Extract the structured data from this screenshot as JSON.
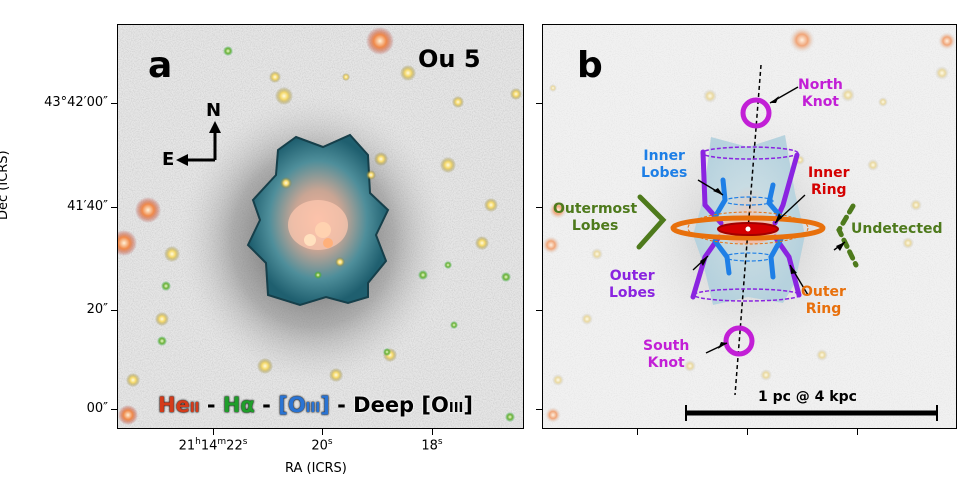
{
  "panel_a": {
    "letter": "a",
    "object_name": "Ou 5",
    "compass": {
      "north": "N",
      "east": "E"
    },
    "legend": {
      "he": "He",
      "he_ion": "II",
      "sep1": " - ",
      "ha": "Hα",
      "sep2": " - ",
      "o3_open": "[O",
      "o3_ion": "III",
      "o3_close": "]",
      "sep3": " - ",
      "deep": "Deep [O",
      "deep_ion": "III",
      "deep_close": "]"
    },
    "y_ticks": [
      "43°42′00″",
      "41′40″",
      "20″",
      "00″"
    ],
    "x_ticks": [
      "21h14m22s",
      "20s",
      "18s"
    ],
    "x_tick_parts": [
      {
        "h": "21",
        "hs": "h",
        "m": "14",
        "ms": "m",
        "s": "22",
        "ss": "s"
      },
      {
        "s": "20",
        "ss": "s"
      },
      {
        "s": "18",
        "ss": "s"
      }
    ],
    "xlabel": "RA (ICRS)",
    "ylabel": "Dec (ICRS)"
  },
  "panel_b": {
    "letter": "b",
    "labels": {
      "north_knot": [
        "North",
        "Knot"
      ],
      "south_knot": [
        "South",
        "Knot"
      ],
      "inner_lobes": [
        "Inner",
        "Lobes"
      ],
      "inner_ring": [
        "Inner",
        "Ring"
      ],
      "outermost_lobes": [
        "Outermost",
        "Lobes"
      ],
      "undetected": "Undetected",
      "outer_lobes": [
        "Outer",
        "Lobes"
      ],
      "outer_ring": [
        "Outer",
        "Ring"
      ]
    },
    "scale_bar": "1 pc @ 4 kpc"
  },
  "colors": {
    "he": "#d43b1a",
    "ha": "#1f9e2a",
    "o3": "#2a74d4",
    "knot": "#c21fd6",
    "inner_lobes": "#1e7fe6",
    "inner_ring": "#d40000",
    "outermost": "#4e7a1c",
    "outer_lobes": "#8a24e0",
    "outer_ring": "#e8700c"
  }
}
